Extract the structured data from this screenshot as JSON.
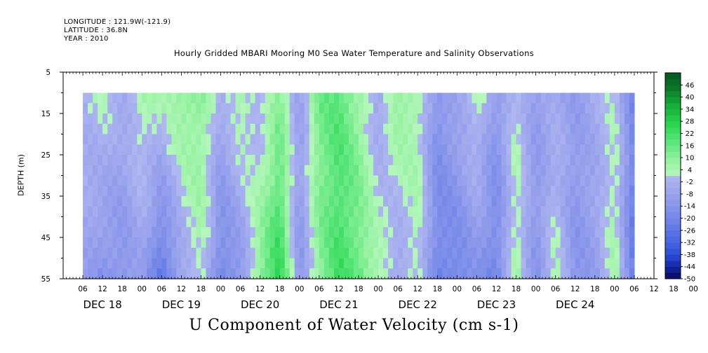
{
  "header": {
    "longitude": "LONGITUDE : 121.9W(-121.9)",
    "latitude": "LATITUDE : 36.8N",
    "year": "YEAR : 2010"
  },
  "chart_data": {
    "type": "heatmap",
    "title": "Hourly Gridded MBARI Mooring M0 Sea Water Temperature and Salinity Observations",
    "bottom_title": "U Component of Water Velocity (cm s-1)",
    "ylabel": "DEPTH (m)",
    "y_ticks": [
      5,
      15,
      25,
      35,
      45,
      55
    ],
    "ylim": [
      55,
      5
    ],
    "data_depth_range": [
      10,
      55
    ],
    "x_hour_ticks": [
      "06",
      "12",
      "18",
      "00",
      "06",
      "12",
      "18",
      "00",
      "06",
      "12",
      "18",
      "00",
      "06",
      "12",
      "18",
      "00",
      "06",
      "12",
      "18",
      "00",
      "06",
      "12",
      "18",
      "00",
      "06",
      "12",
      "18",
      "00",
      "06",
      "12",
      "18",
      "00"
    ],
    "x_day_labels": [
      "DEC 18",
      "DEC 19",
      "DEC 20",
      "DEC 21",
      "DEC 22",
      "DEC 23",
      "DEC 24"
    ],
    "data_start_hour": 6,
    "data_end_hour": 174,
    "colorbar": {
      "labels": [
        "46",
        "40",
        "34",
        "28",
        "22",
        "16",
        "10",
        "4",
        "-2",
        "-8",
        "-14",
        "-20",
        "-26",
        "-32",
        "-38",
        "-44",
        "-50"
      ],
      "min": -50,
      "max": 52,
      "step": 3
    },
    "columns": [
      {
        "hour": 6,
        "top": -2,
        "bottom": -8
      },
      {
        "hour": 12,
        "top": 2,
        "bottom": -14
      },
      {
        "hour": 18,
        "top": -4,
        "bottom": -14
      },
      {
        "hour": 24,
        "top": 5,
        "bottom": -8
      },
      {
        "hour": 30,
        "top": 4,
        "bottom": -26
      },
      {
        "hour": 36,
        "top": 10,
        "bottom": -8
      },
      {
        "hour": 42,
        "top": 10,
        "bottom": 4
      },
      {
        "hour": 48,
        "top": -4,
        "bottom": -20
      },
      {
        "hour": 54,
        "top": 8,
        "bottom": -14
      },
      {
        "hour": 60,
        "top": -4,
        "bottom": 12
      },
      {
        "hour": 66,
        "top": 10,
        "bottom": 26
      },
      {
        "hour": 72,
        "top": -8,
        "bottom": -14
      },
      {
        "hour": 78,
        "top": 14,
        "bottom": 10
      },
      {
        "hour": 84,
        "top": 18,
        "bottom": 22
      },
      {
        "hour": 90,
        "top": 8,
        "bottom": 16
      },
      {
        "hour": 96,
        "top": -8,
        "bottom": 6
      },
      {
        "hour": 102,
        "top": 10,
        "bottom": -8
      },
      {
        "hour": 108,
        "top": 5,
        "bottom": 4
      },
      {
        "hour": 114,
        "top": -14,
        "bottom": -20
      },
      {
        "hour": 120,
        "top": -6,
        "bottom": -20
      },
      {
        "hour": 126,
        "top": 4,
        "bottom": -14
      },
      {
        "hour": 132,
        "top": -12,
        "bottom": -20
      },
      {
        "hour": 138,
        "top": 2,
        "bottom": 6
      },
      {
        "hour": 144,
        "top": -10,
        "bottom": -14
      },
      {
        "hour": 150,
        "top": -6,
        "bottom": 4
      },
      {
        "hour": 156,
        "top": -10,
        "bottom": -14
      },
      {
        "hour": 162,
        "top": -4,
        "bottom": -10
      },
      {
        "hour": 168,
        "top": 2,
        "bottom": 6
      },
      {
        "hour": 174,
        "top": -20,
        "bottom": -26
      }
    ]
  }
}
